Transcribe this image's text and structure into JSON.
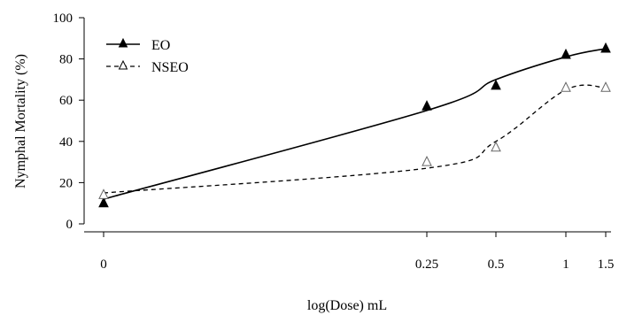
{
  "chart_data": {
    "type": "scatter",
    "title": "",
    "xlabel": "log(Dose) mL",
    "ylabel": "Nymphal Mortality (%)",
    "ylim": [
      0,
      100
    ],
    "yticks": [
      0,
      20,
      40,
      60,
      80,
      100
    ],
    "xticks": [
      "0",
      "0.25",
      "0.5",
      "1",
      "1.5"
    ],
    "x_scale": "log",
    "grid": false,
    "legend_position": "top-left",
    "series": [
      {
        "name": "EO",
        "marker": "filled-triangle",
        "line": "solid",
        "color": "#000000",
        "points": [
          {
            "x": "0",
            "y": 10
          },
          {
            "x": "0.25",
            "y": 57
          },
          {
            "x": "0.5",
            "y": 67
          },
          {
            "x": "1",
            "y": 82
          },
          {
            "x": "1.5",
            "y": 85
          }
        ],
        "fit": [
          {
            "x": "0",
            "y": 12
          },
          {
            "x": "0.25",
            "y": 55
          },
          {
            "x": "0.5",
            "y": 70
          },
          {
            "x": "1",
            "y": 81
          },
          {
            "x": "1.5",
            "y": 85
          }
        ]
      },
      {
        "name": "NSEO",
        "marker": "open-triangle",
        "line": "dashed",
        "color": "#000000",
        "points": [
          {
            "x": "0",
            "y": 14
          },
          {
            "x": "0.25",
            "y": 30
          },
          {
            "x": "0.5",
            "y": 37
          },
          {
            "x": "1",
            "y": 66
          },
          {
            "x": "1.5",
            "y": 66
          }
        ],
        "fit": [
          {
            "x": "0",
            "y": 15
          },
          {
            "x": "0.25",
            "y": 27
          },
          {
            "x": "0.5",
            "y": 40
          },
          {
            "x": "1",
            "y": 65
          },
          {
            "x": "1.5",
            "y": 66
          }
        ]
      }
    ]
  }
}
